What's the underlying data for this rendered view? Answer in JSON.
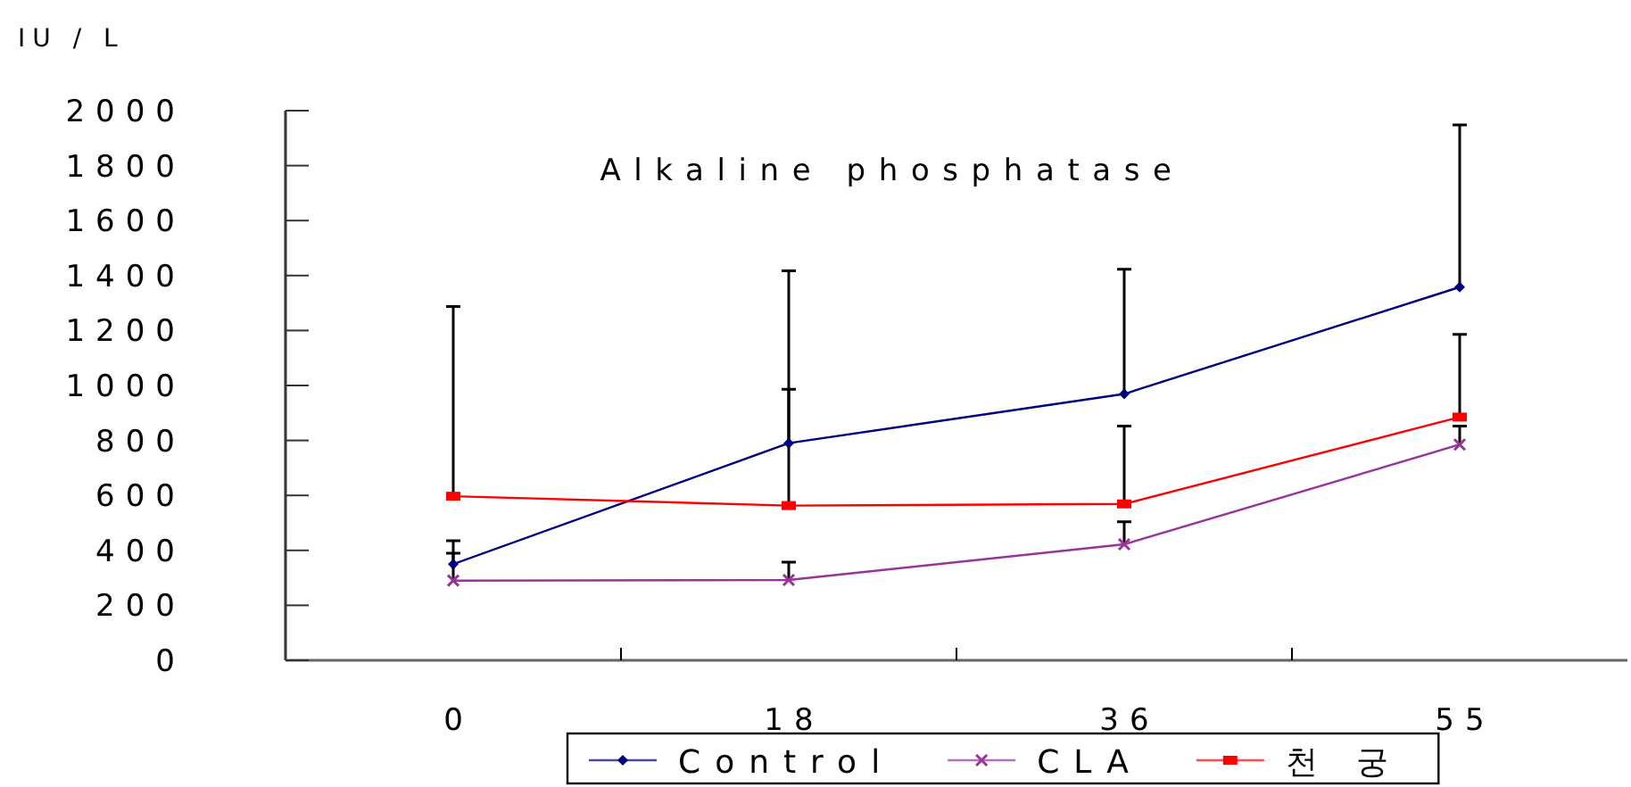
{
  "chart_data": {
    "type": "line",
    "title": "Alkaline phosphatase",
    "ylabel": "IU / L",
    "categories": [
      "0",
      "18",
      "36",
      "55"
    ],
    "series": [
      {
        "name": "Control",
        "color": "#000080",
        "marker": "diamond",
        "values": [
          350,
          790,
          969,
          1358
        ],
        "errors": [
          [
            350,
            435
          ],
          [
            790,
            986
          ],
          [
            969,
            1423
          ],
          [
            1358,
            1948
          ]
        ]
      },
      {
        "name": "CLA",
        "color": "#993399",
        "marker": "cross",
        "values": [
          290,
          292,
          422,
          785
        ],
        "errors": [
          [
            290,
            390
          ],
          [
            292,
            357
          ],
          [
            422,
            504
          ],
          [
            785,
            852
          ]
        ]
      },
      {
        "name": "천 궁",
        "color": "#ff0000",
        "marker": "square",
        "values": [
          597,
          563,
          569,
          885
        ],
        "errors": [
          [
            597,
            1287
          ],
          [
            563,
            1417
          ],
          [
            569,
            852
          ],
          [
            885,
            1186
          ]
        ]
      }
    ],
    "ylim": [
      0,
      2000
    ],
    "yticks": [
      0,
      200,
      400,
      600,
      800,
      1000,
      1200,
      1400,
      1600,
      1800,
      2000
    ],
    "grid": false,
    "legend": "bottom",
    "line_style": "solid"
  }
}
